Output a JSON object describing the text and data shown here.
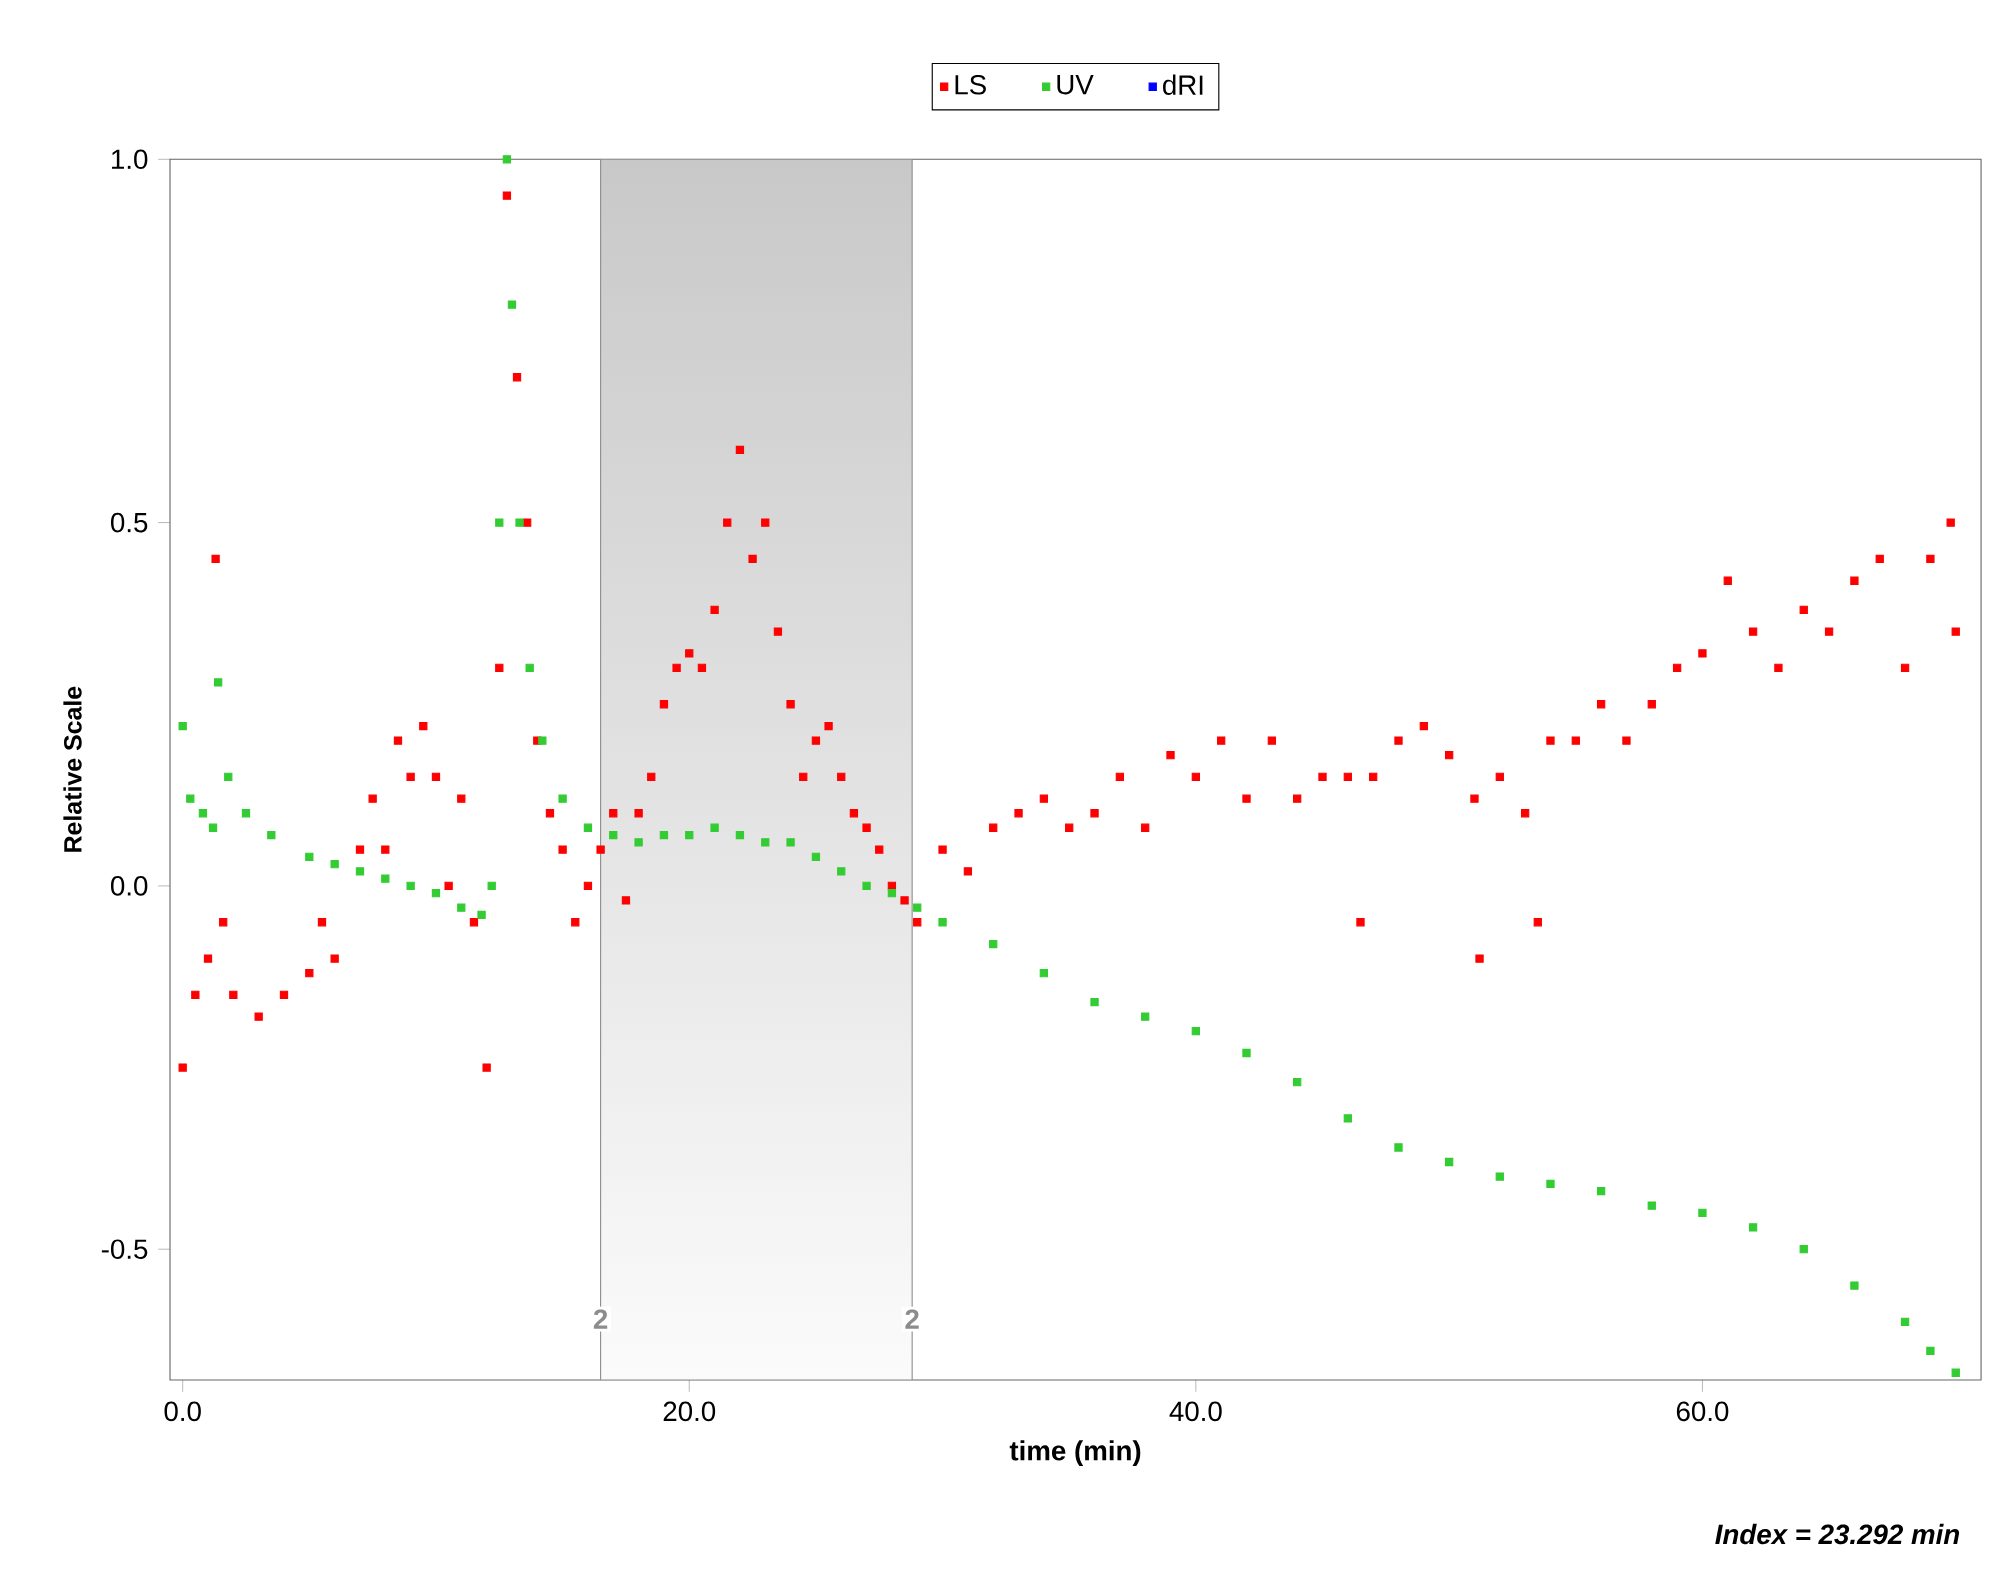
{
  "chart_data": {
    "type": "scatter",
    "xlabel": "time (min)",
    "ylabel": "Relative Scale",
    "marker": "square",
    "legend": "top",
    "xlim": [
      -0.5,
      71
    ],
    "ylim": [
      -0.68,
      1.0
    ],
    "xticks": [
      {
        "value": 0,
        "label": "0.0"
      },
      {
        "value": 20,
        "label": "20.0"
      },
      {
        "value": 40,
        "label": "40.0"
      },
      {
        "value": 60,
        "label": "60.0"
      }
    ],
    "yticks": [
      {
        "value": -0.5,
        "label": "-0.5"
      },
      {
        "value": 0,
        "label": "0.0"
      },
      {
        "value": 0.5,
        "label": "0.5"
      },
      {
        "value": 1.0,
        "label": "1.0"
      }
    ],
    "bands": [
      {
        "axis": "x",
        "from": 16.5,
        "to": 28.8,
        "label": "2",
        "color": "#c8c8c8"
      }
    ],
    "annotations": [
      "Index = 23.292 min"
    ],
    "series": [
      {
        "name": "LS",
        "color": "#ff0000",
        "x": [
          0,
          0.5,
          1,
          1.3,
          1.6,
          2,
          3,
          4,
          5,
          5.5,
          6,
          7,
          7.5,
          8,
          8.5,
          9,
          9.5,
          10,
          10.5,
          11,
          11.5,
          12,
          12.5,
          12.8,
          13.2,
          13.6,
          14,
          14.5,
          15,
          15.5,
          16,
          16.5,
          17,
          17.5,
          18,
          18.5,
          19,
          19.5,
          20,
          20.5,
          21,
          21.5,
          22,
          22.5,
          23,
          23.5,
          24,
          24.5,
          25,
          25.5,
          26,
          26.5,
          27,
          27.5,
          28,
          28.5,
          29,
          30,
          31,
          32,
          33,
          34,
          35,
          36,
          37,
          38,
          39,
          40,
          41,
          42,
          43,
          44,
          45,
          46,
          46.5,
          47,
          48,
          49,
          50,
          51,
          51.2,
          52,
          53,
          53.5,
          54,
          55,
          56,
          57,
          58,
          59,
          60,
          61,
          62,
          63,
          64,
          65,
          66,
          67,
          68,
          69,
          69.8,
          70
        ],
        "values": [
          -0.25,
          -0.15,
          -0.1,
          0.45,
          -0.05,
          -0.15,
          -0.18,
          -0.15,
          -0.12,
          -0.05,
          -0.1,
          0.05,
          0.12,
          0.05,
          0.2,
          0.15,
          0.22,
          0.15,
          0.0,
          0.12,
          -0.05,
          -0.25,
          0.3,
          0.95,
          0.7,
          0.5,
          0.2,
          0.1,
          0.05,
          -0.05,
          0.0,
          0.05,
          0.1,
          -0.02,
          0.1,
          0.15,
          0.25,
          0.3,
          0.32,
          0.3,
          0.38,
          0.5,
          0.6,
          0.45,
          0.5,
          0.35,
          0.25,
          0.15,
          0.2,
          0.22,
          0.15,
          0.1,
          0.08,
          0.05,
          0.0,
          -0.02,
          -0.05,
          0.05,
          0.02,
          0.08,
          0.1,
          0.12,
          0.08,
          0.1,
          0.15,
          0.08,
          0.18,
          0.15,
          0.2,
          0.12,
          0.2,
          0.12,
          0.15,
          0.15,
          -0.05,
          0.15,
          0.2,
          0.22,
          0.18,
          0.12,
          -0.1,
          0.15,
          0.1,
          -0.05,
          0.2,
          0.2,
          0.25,
          0.2,
          0.25,
          0.3,
          0.32,
          0.42,
          0.35,
          0.3,
          0.38,
          0.35,
          0.42,
          0.45,
          0.3,
          0.45,
          0.5,
          0.35
        ]
      },
      {
        "name": "UV",
        "color": "#33cc33",
        "x": [
          0,
          0.3,
          0.8,
          1.2,
          1.4,
          1.8,
          2.5,
          3.5,
          5,
          6,
          7,
          8,
          9,
          10,
          11,
          11.8,
          12.2,
          12.5,
          12.8,
          13,
          13.3,
          13.7,
          14.2,
          15,
          16,
          17,
          18,
          19,
          20,
          21,
          22,
          23,
          24,
          25,
          26,
          27,
          28,
          29,
          30,
          32,
          34,
          36,
          38,
          40,
          42,
          44,
          46,
          48,
          50,
          52,
          54,
          56,
          58,
          60,
          62,
          64,
          66,
          68,
          69,
          70
        ],
        "values": [
          0.22,
          0.12,
          0.1,
          0.08,
          0.28,
          0.15,
          0.1,
          0.07,
          0.04,
          0.03,
          0.02,
          0.01,
          0.0,
          -0.01,
          -0.03,
          -0.04,
          0.0,
          0.5,
          1.0,
          0.8,
          0.5,
          0.3,
          0.2,
          0.12,
          0.08,
          0.07,
          0.06,
          0.07,
          0.07,
          0.08,
          0.07,
          0.06,
          0.06,
          0.04,
          0.02,
          0.0,
          -0.01,
          -0.03,
          -0.05,
          -0.08,
          -0.12,
          -0.16,
          -0.18,
          -0.2,
          -0.23,
          -0.27,
          -0.32,
          -0.36,
          -0.38,
          -0.4,
          -0.41,
          -0.42,
          -0.44,
          -0.45,
          -0.47,
          -0.5,
          -0.55,
          -0.6,
          -0.64,
          -0.67
        ]
      },
      {
        "name": "dRI",
        "color": "#0000ff"
      }
    ]
  }
}
